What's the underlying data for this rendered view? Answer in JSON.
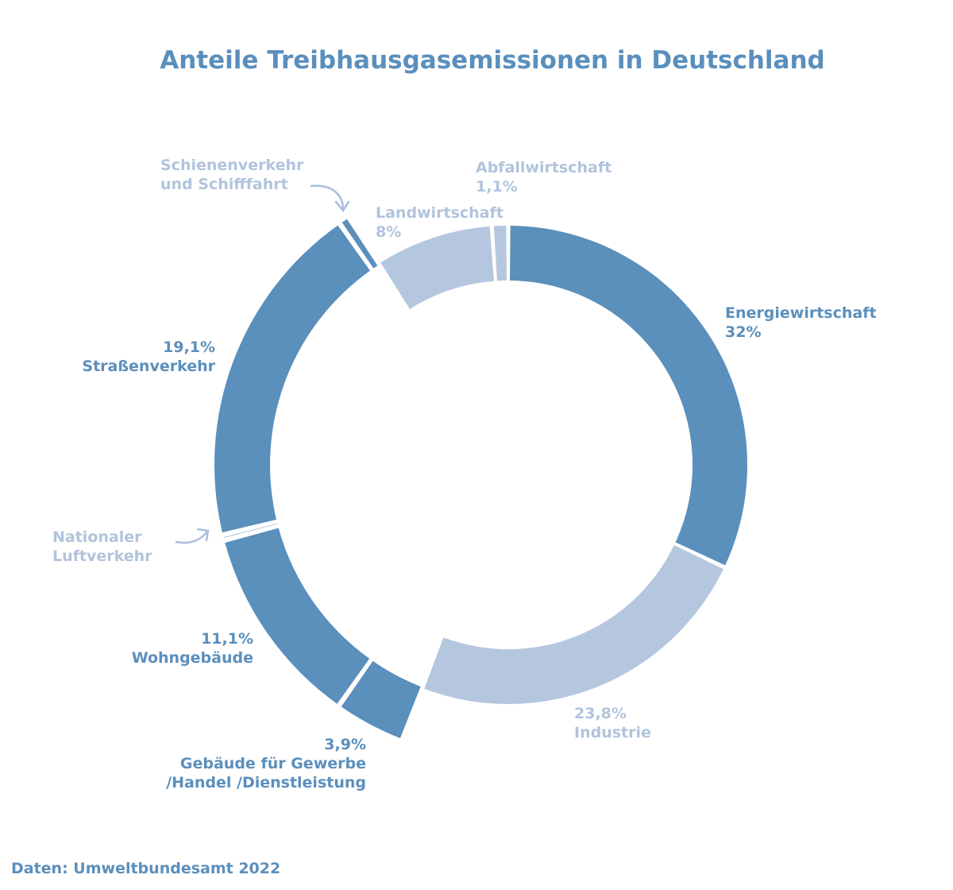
{
  "chart_data": {
    "type": "donut",
    "title": "Anteile Treibhausgasemissionen in Deutschland",
    "source": "Daten: Umweltbundesamt 2022",
    "colors": {
      "outer": "#5b8fbc",
      "inner": "#b5c7df"
    },
    "segments": [
      {
        "name": "Energiewirtschaft",
        "value_label": "32%",
        "value": 32,
        "ring": "outer"
      },
      {
        "name": "Industrie",
        "value_label": "23,8%",
        "value": 23.8,
        "ring": "inner"
      },
      {
        "name": "Gebäude für Gewerbe /Handel /Dienstleistung",
        "name_line1": "Gebäude für Gewerbe",
        "name_line2": "/Handel /Dienstleistung",
        "value_label": "3,9%",
        "value": 3.9,
        "ring": "outer"
      },
      {
        "name": "Wohngebäude",
        "value_label": "11,1%",
        "value": 11.1,
        "ring": "outer"
      },
      {
        "name": "Nationaler Luftverkehr",
        "name_line1": "Nationaler",
        "name_line2": "Luftverkehr",
        "value": 0.3,
        "ring": "outer"
      },
      {
        "name": "Straßenverkehr",
        "value_label": "19,1%",
        "value": 19.1,
        "ring": "outer"
      },
      {
        "name": "Schienenverkehr und Schifffahrt",
        "name_line1": "Schienenverkehr",
        "name_line2": "und Schifffahrt",
        "value": 0.6,
        "ring": "outer"
      },
      {
        "name": "Landwirtschaft",
        "value_label": "8%",
        "value": 8,
        "ring": "inner"
      },
      {
        "name": "Abfallwirtschaft",
        "value_label": "1,1%",
        "value": 1.1,
        "ring": "inner"
      }
    ]
  }
}
